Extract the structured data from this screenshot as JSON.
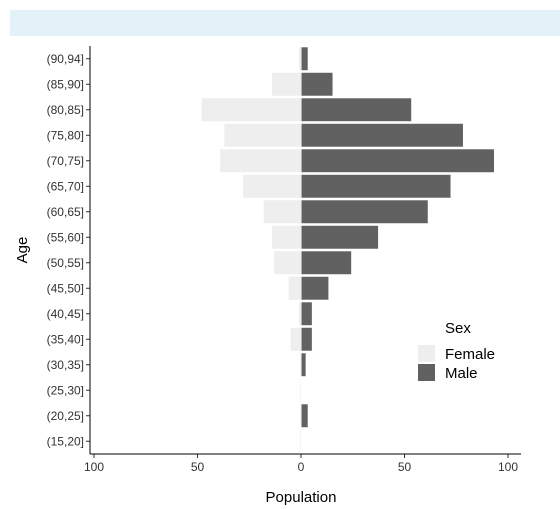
{
  "chart_data": {
    "type": "bar",
    "orientation": "horizontal",
    "title": "",
    "xlabel": "Population",
    "ylabel": "Age",
    "xlim": [
      -100,
      100
    ],
    "x_ticks": [
      -100,
      -50,
      0,
      50,
      100
    ],
    "x_tick_labels": [
      "100",
      "50",
      "0",
      "50",
      "100"
    ],
    "categories": [
      "(15,20]",
      "(20,25]",
      "(25,30]",
      "(30,35]",
      "(35,40]",
      "(40,45]",
      "(45,50]",
      "(50,55]",
      "(55,60]",
      "(60,65]",
      "(65,70]",
      "(70,75]",
      "(75,80]",
      "(80,85]",
      "(85,90]",
      "(90,94]"
    ],
    "series": [
      {
        "name": "Female",
        "color": "#eeeeee",
        "values": [
          0,
          0,
          0,
          0,
          5,
          1,
          6,
          13,
          14,
          18,
          28,
          39,
          37,
          48,
          14,
          1
        ]
      },
      {
        "name": "Male",
        "color": "#616161",
        "values": [
          0,
          3,
          0,
          2,
          5,
          5,
          13,
          24,
          37,
          61,
          72,
          93,
          78,
          53,
          15,
          3
        ]
      }
    ],
    "legend": {
      "title": "Sex",
      "placement": "right",
      "entries": [
        "Female",
        "Male"
      ]
    },
    "grid": false
  },
  "header_band": {
    "color": "#e3f1f8"
  }
}
